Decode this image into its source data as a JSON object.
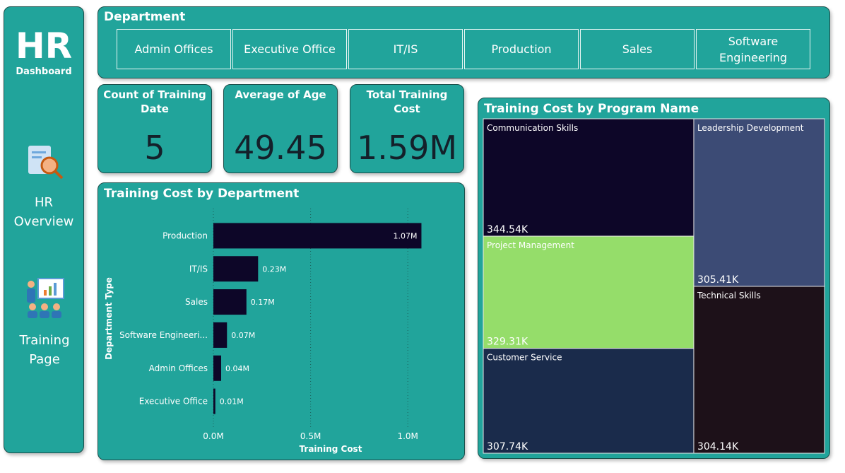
{
  "sidebar": {
    "title": "HR",
    "subtitle": "Dashboard",
    "nav": [
      "HR Overview",
      "Training Page"
    ]
  },
  "slicer": {
    "title": "Department",
    "options": [
      "Admin Offices",
      "Executive Office",
      "IT/IS",
      "Production",
      "Sales",
      "Software Engineering"
    ]
  },
  "cards": [
    {
      "label": "Count of Training Date",
      "value": 5
    },
    {
      "label": "Average of Age",
      "value": 49.45
    },
    {
      "label": "Total Training Cost",
      "value": 1590000,
      "value_label": "1.59M"
    }
  ],
  "chart_data": [
    {
      "type": "hbar",
      "title": "Training Cost by Department",
      "xlabel": "Training Cost",
      "ylabel": "Department Type",
      "categories": [
        "Production",
        "IT/IS",
        "Sales",
        "Software Engineeri...",
        "Admin Offices",
        "Executive Office"
      ],
      "values": [
        1070000,
        230000,
        170000,
        70000,
        40000,
        10000
      ],
      "value_labels": [
        "1.07M",
        "0.23M",
        "0.17M",
        "0.07M",
        "0.04M",
        "0.01M"
      ],
      "color": "#0d0628",
      "xlim": [
        0,
        1250000
      ],
      "xticks": [
        {
          "value": 0,
          "label": "0.0M"
        },
        {
          "value": 500000,
          "label": "0.5M"
        },
        {
          "value": 1000000,
          "label": "1.0M"
        }
      ],
      "grid": true
    },
    {
      "type": "treemap",
      "title": "Training Cost by Program Name",
      "categories": [
        "Communication Skills",
        "Project Management",
        "Customer Service",
        "Leadership Development",
        "Technical Skills"
      ],
      "values": [
        344540,
        329310,
        307740,
        305410,
        304140
      ],
      "value_labels": [
        "344.54K",
        "329.31K",
        "307.74K",
        "305.41K",
        "304.14K"
      ],
      "colors": [
        "#0d0628",
        "#95dd6a",
        "#1a2b4b",
        "#3c4b75",
        "#1d1119"
      ]
    }
  ]
}
